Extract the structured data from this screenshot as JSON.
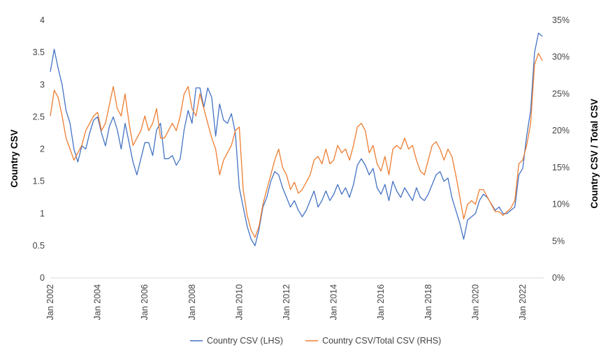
{
  "chart_data": {
    "type": "line",
    "title": "",
    "xlabel": "",
    "ylabel_left": "Country CSV",
    "ylabel_right": "Country CSV / Total CSV",
    "x_ticks": [
      "Jan 2002",
      "Jan 2004",
      "Jan 2006",
      "Jan 2008",
      "Jan 2010",
      "Jan 2012",
      "Jan 2014",
      "Jan 2016",
      "Jan 2018",
      "Jan 2020",
      "Jan 2022"
    ],
    "x_range": [
      "2002-01",
      "2022-12"
    ],
    "y_left": {
      "min": 0,
      "max": 4,
      "ticks": [
        "0",
        "0.5",
        "1",
        "1.5",
        "2",
        "2.5",
        "3",
        "3.5",
        "4"
      ]
    },
    "y_right": {
      "min": 0,
      "max": 0.35,
      "ticks": [
        "0%",
        "5%",
        "10%",
        "15%",
        "20%",
        "25%",
        "30%",
        "35%"
      ]
    },
    "grid": false,
    "legend_position": "bottom",
    "series": [
      {
        "name": "Country CSV (LHS)",
        "axis": "left",
        "color": "#4472C4",
        "values": [
          [
            "2002-01",
            3.2
          ],
          [
            "2002-03",
            3.55
          ],
          [
            "2002-05",
            3.25
          ],
          [
            "2002-07",
            3.0
          ],
          [
            "2002-09",
            2.6
          ],
          [
            "2002-11",
            2.4
          ],
          [
            "2003-01",
            2.0
          ],
          [
            "2003-03",
            1.8
          ],
          [
            "2003-05",
            2.05
          ],
          [
            "2003-07",
            2.0
          ],
          [
            "2003-09",
            2.25
          ],
          [
            "2003-11",
            2.45
          ],
          [
            "2004-01",
            2.5
          ],
          [
            "2004-03",
            2.25
          ],
          [
            "2004-05",
            2.05
          ],
          [
            "2004-07",
            2.35
          ],
          [
            "2004-09",
            2.5
          ],
          [
            "2004-11",
            2.3
          ],
          [
            "2005-01",
            2.0
          ],
          [
            "2005-03",
            2.4
          ],
          [
            "2005-05",
            2.1
          ],
          [
            "2005-07",
            1.8
          ],
          [
            "2005-09",
            1.6
          ],
          [
            "2005-11",
            1.85
          ],
          [
            "2006-01",
            2.1
          ],
          [
            "2006-03",
            2.1
          ],
          [
            "2006-05",
            1.9
          ],
          [
            "2006-07",
            2.3
          ],
          [
            "2006-09",
            2.4
          ],
          [
            "2006-11",
            1.85
          ],
          [
            "2007-01",
            1.85
          ],
          [
            "2007-03",
            1.9
          ],
          [
            "2007-05",
            1.75
          ],
          [
            "2007-07",
            1.85
          ],
          [
            "2007-09",
            2.3
          ],
          [
            "2007-11",
            2.6
          ],
          [
            "2008-01",
            2.4
          ],
          [
            "2008-03",
            2.95
          ],
          [
            "2008-05",
            2.95
          ],
          [
            "2008-07",
            2.65
          ],
          [
            "2008-09",
            2.95
          ],
          [
            "2008-11",
            2.8
          ],
          [
            "2009-01",
            2.2
          ],
          [
            "2009-03",
            2.7
          ],
          [
            "2009-05",
            2.45
          ],
          [
            "2009-07",
            2.4
          ],
          [
            "2009-09",
            2.55
          ],
          [
            "2009-11",
            2.25
          ],
          [
            "2010-01",
            1.4
          ],
          [
            "2010-03",
            1.1
          ],
          [
            "2010-05",
            0.8
          ],
          [
            "2010-07",
            0.6
          ],
          [
            "2010-09",
            0.5
          ],
          [
            "2010-11",
            0.75
          ],
          [
            "2011-01",
            1.1
          ],
          [
            "2011-03",
            1.25
          ],
          [
            "2011-05",
            1.5
          ],
          [
            "2011-07",
            1.65
          ],
          [
            "2011-09",
            1.6
          ],
          [
            "2011-11",
            1.4
          ],
          [
            "2012-01",
            1.25
          ],
          [
            "2012-03",
            1.1
          ],
          [
            "2012-05",
            1.2
          ],
          [
            "2012-07",
            1.05
          ],
          [
            "2012-09",
            0.95
          ],
          [
            "2012-11",
            1.05
          ],
          [
            "2013-01",
            1.2
          ],
          [
            "2013-03",
            1.35
          ],
          [
            "2013-05",
            1.1
          ],
          [
            "2013-07",
            1.2
          ],
          [
            "2013-09",
            1.35
          ],
          [
            "2013-11",
            1.2
          ],
          [
            "2014-01",
            1.3
          ],
          [
            "2014-03",
            1.45
          ],
          [
            "2014-05",
            1.3
          ],
          [
            "2014-07",
            1.4
          ],
          [
            "2014-09",
            1.25
          ],
          [
            "2014-11",
            1.45
          ],
          [
            "2015-01",
            1.75
          ],
          [
            "2015-03",
            1.85
          ],
          [
            "2015-05",
            1.75
          ],
          [
            "2015-07",
            1.6
          ],
          [
            "2015-09",
            1.7
          ],
          [
            "2015-11",
            1.4
          ],
          [
            "2016-01",
            1.3
          ],
          [
            "2016-03",
            1.45
          ],
          [
            "2016-05",
            1.2
          ],
          [
            "2016-07",
            1.5
          ],
          [
            "2016-09",
            1.35
          ],
          [
            "2016-11",
            1.25
          ],
          [
            "2017-01",
            1.4
          ],
          [
            "2017-03",
            1.3
          ],
          [
            "2017-05",
            1.2
          ],
          [
            "2017-07",
            1.4
          ],
          [
            "2017-09",
            1.25
          ],
          [
            "2017-11",
            1.2
          ],
          [
            "2018-01",
            1.3
          ],
          [
            "2018-03",
            1.45
          ],
          [
            "2018-05",
            1.6
          ],
          [
            "2018-07",
            1.65
          ],
          [
            "2018-09",
            1.5
          ],
          [
            "2018-11",
            1.55
          ],
          [
            "2019-01",
            1.25
          ],
          [
            "2019-03",
            1.05
          ],
          [
            "2019-05",
            0.85
          ],
          [
            "2019-07",
            0.6
          ],
          [
            "2019-09",
            0.9
          ],
          [
            "2019-11",
            0.95
          ],
          [
            "2020-01",
            1.0
          ],
          [
            "2020-03",
            1.2
          ],
          [
            "2020-05",
            1.3
          ],
          [
            "2020-07",
            1.25
          ],
          [
            "2020-09",
            1.15
          ],
          [
            "2020-11",
            1.05
          ],
          [
            "2021-01",
            1.1
          ],
          [
            "2021-03",
            1.0
          ],
          [
            "2021-05",
            1.0
          ],
          [
            "2021-07",
            1.05
          ],
          [
            "2021-09",
            1.1
          ],
          [
            "2021-11",
            1.6
          ],
          [
            "2022-01",
            1.7
          ],
          [
            "2022-03",
            2.2
          ],
          [
            "2022-05",
            2.6
          ],
          [
            "2022-07",
            3.5
          ],
          [
            "2022-09",
            3.8
          ],
          [
            "2022-11",
            3.75
          ]
        ]
      },
      {
        "name": "Country CSV/Total CSV (RHS)",
        "axis": "right",
        "color": "#ED7D31",
        "values": [
          [
            "2002-01",
            0.22
          ],
          [
            "2002-03",
            0.255
          ],
          [
            "2002-05",
            0.245
          ],
          [
            "2002-07",
            0.22
          ],
          [
            "2002-09",
            0.19
          ],
          [
            "2002-11",
            0.175
          ],
          [
            "2003-01",
            0.16
          ],
          [
            "2003-03",
            0.17
          ],
          [
            "2003-05",
            0.18
          ],
          [
            "2003-07",
            0.2
          ],
          [
            "2003-09",
            0.21
          ],
          [
            "2003-11",
            0.22
          ],
          [
            "2004-01",
            0.225
          ],
          [
            "2004-03",
            0.2
          ],
          [
            "2004-05",
            0.21
          ],
          [
            "2004-07",
            0.235
          ],
          [
            "2004-09",
            0.26
          ],
          [
            "2004-11",
            0.23
          ],
          [
            "2005-01",
            0.22
          ],
          [
            "2005-03",
            0.25
          ],
          [
            "2005-05",
            0.21
          ],
          [
            "2005-07",
            0.18
          ],
          [
            "2005-09",
            0.19
          ],
          [
            "2005-11",
            0.2
          ],
          [
            "2006-01",
            0.22
          ],
          [
            "2006-03",
            0.2
          ],
          [
            "2006-05",
            0.21
          ],
          [
            "2006-07",
            0.23
          ],
          [
            "2006-09",
            0.19
          ],
          [
            "2006-11",
            0.19
          ],
          [
            "2007-01",
            0.2
          ],
          [
            "2007-03",
            0.21
          ],
          [
            "2007-05",
            0.2
          ],
          [
            "2007-07",
            0.22
          ],
          [
            "2007-09",
            0.25
          ],
          [
            "2007-11",
            0.26
          ],
          [
            "2008-01",
            0.23
          ],
          [
            "2008-03",
            0.22
          ],
          [
            "2008-05",
            0.25
          ],
          [
            "2008-07",
            0.23
          ],
          [
            "2008-09",
            0.21
          ],
          [
            "2008-11",
            0.19
          ],
          [
            "2009-01",
            0.175
          ],
          [
            "2009-03",
            0.14
          ],
          [
            "2009-05",
            0.16
          ],
          [
            "2009-07",
            0.17
          ],
          [
            "2009-09",
            0.18
          ],
          [
            "2009-11",
            0.2
          ],
          [
            "2010-01",
            0.205
          ],
          [
            "2010-03",
            0.12
          ],
          [
            "2010-05",
            0.085
          ],
          [
            "2010-07",
            0.065
          ],
          [
            "2010-09",
            0.055
          ],
          [
            "2010-11",
            0.07
          ],
          [
            "2011-01",
            0.1
          ],
          [
            "2011-03",
            0.12
          ],
          [
            "2011-05",
            0.14
          ],
          [
            "2011-07",
            0.16
          ],
          [
            "2011-09",
            0.175
          ],
          [
            "2011-11",
            0.15
          ],
          [
            "2012-01",
            0.14
          ],
          [
            "2012-03",
            0.12
          ],
          [
            "2012-05",
            0.13
          ],
          [
            "2012-07",
            0.115
          ],
          [
            "2012-09",
            0.12
          ],
          [
            "2012-11",
            0.13
          ],
          [
            "2013-01",
            0.14
          ],
          [
            "2013-03",
            0.16
          ],
          [
            "2013-05",
            0.165
          ],
          [
            "2013-07",
            0.155
          ],
          [
            "2013-09",
            0.175
          ],
          [
            "2013-11",
            0.155
          ],
          [
            "2014-01",
            0.16
          ],
          [
            "2014-03",
            0.18
          ],
          [
            "2014-05",
            0.17
          ],
          [
            "2014-07",
            0.175
          ],
          [
            "2014-09",
            0.16
          ],
          [
            "2014-11",
            0.18
          ],
          [
            "2015-01",
            0.205
          ],
          [
            "2015-03",
            0.21
          ],
          [
            "2015-05",
            0.2
          ],
          [
            "2015-07",
            0.17
          ],
          [
            "2015-09",
            0.18
          ],
          [
            "2015-11",
            0.155
          ],
          [
            "2016-01",
            0.145
          ],
          [
            "2016-03",
            0.165
          ],
          [
            "2016-05",
            0.14
          ],
          [
            "2016-07",
            0.175
          ],
          [
            "2016-09",
            0.18
          ],
          [
            "2016-11",
            0.175
          ],
          [
            "2017-01",
            0.19
          ],
          [
            "2017-03",
            0.175
          ],
          [
            "2017-05",
            0.18
          ],
          [
            "2017-07",
            0.16
          ],
          [
            "2017-09",
            0.145
          ],
          [
            "2017-11",
            0.14
          ],
          [
            "2018-01",
            0.16
          ],
          [
            "2018-03",
            0.18
          ],
          [
            "2018-05",
            0.185
          ],
          [
            "2018-07",
            0.175
          ],
          [
            "2018-09",
            0.16
          ],
          [
            "2018-11",
            0.175
          ],
          [
            "2019-01",
            0.165
          ],
          [
            "2019-03",
            0.14
          ],
          [
            "2019-05",
            0.11
          ],
          [
            "2019-07",
            0.08
          ],
          [
            "2019-09",
            0.1
          ],
          [
            "2019-11",
            0.105
          ],
          [
            "2020-01",
            0.1
          ],
          [
            "2020-03",
            0.12
          ],
          [
            "2020-05",
            0.12
          ],
          [
            "2020-07",
            0.11
          ],
          [
            "2020-09",
            0.1
          ],
          [
            "2020-11",
            0.09
          ],
          [
            "2021-01",
            0.09
          ],
          [
            "2021-03",
            0.085
          ],
          [
            "2021-05",
            0.09
          ],
          [
            "2021-07",
            0.095
          ],
          [
            "2021-09",
            0.105
          ],
          [
            "2021-11",
            0.155
          ],
          [
            "2022-01",
            0.16
          ],
          [
            "2022-03",
            0.18
          ],
          [
            "2022-05",
            0.21
          ],
          [
            "2022-07",
            0.29
          ],
          [
            "2022-09",
            0.305
          ],
          [
            "2022-11",
            0.295
          ]
        ]
      }
    ]
  }
}
